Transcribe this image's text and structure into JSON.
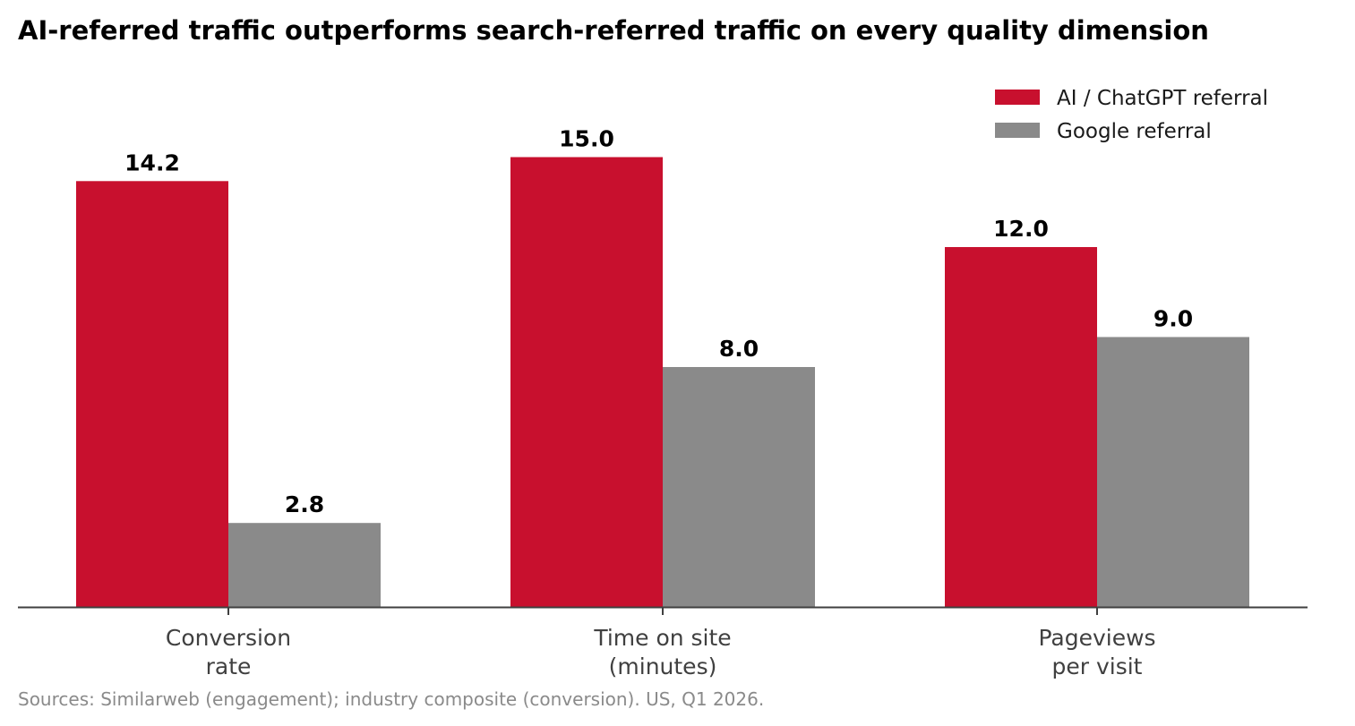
{
  "chart_data": {
    "type": "bar",
    "title": "AI-referred traffic outperforms search-referred traffic on every quality dimension",
    "xlabel": "",
    "ylabel": "",
    "categories": [
      [
        "Conversion",
        "rate"
      ],
      [
        "Time on site",
        "(minutes)"
      ],
      [
        "Pageviews",
        "per visit"
      ]
    ],
    "series": [
      {
        "name": "AI / ChatGPT referral",
        "color": "#c8102e",
        "values": [
          14.2,
          15.0,
          12.0
        ],
        "labels": [
          "14.2",
          "15.0",
          "12.0"
        ]
      },
      {
        "name": "Google referral",
        "color": "#8a8a8a",
        "values": [
          2.8,
          8.0,
          9.0
        ],
        "labels": [
          "2.8",
          "8.0",
          "9.0"
        ]
      }
    ],
    "ylim": [
      0,
      17.5
    ],
    "grid": false,
    "legend_position": "top-right",
    "source": "Sources: Similarweb (engagement); industry composite (conversion). US, Q1 2026."
  }
}
